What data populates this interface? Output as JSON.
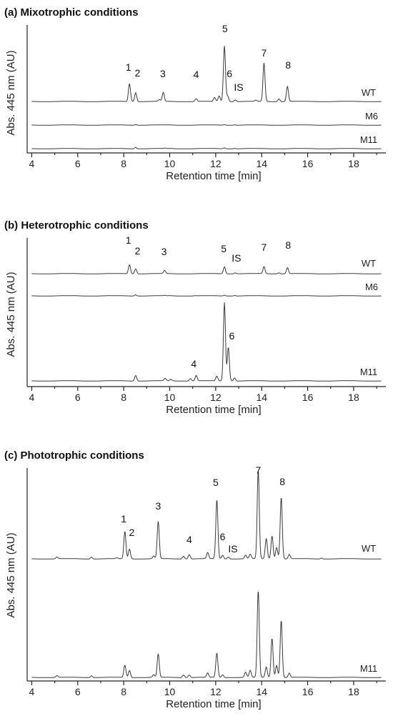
{
  "figure": {
    "y_axis_label": "Abs. 445 nm  (AU)",
    "x_axis_label": "Retention time [min]"
  },
  "chart_data": [
    {
      "type": "line",
      "panel": "a",
      "title": "(a) Mixotrophic conditions",
      "xlabel": "Retention time [min]",
      "ylabel": "Abs. 445 nm  (AU)",
      "xlim": [
        3.8,
        19.4
      ],
      "xticks": [
        4,
        6,
        8,
        10,
        12,
        14,
        16,
        18
      ],
      "ylim": [
        0,
        1
      ],
      "series": [
        {
          "name": "WT",
          "peaks": [
            {
              "rt": 8.25,
              "height": 0.32
            },
            {
              "rt": 8.52,
              "height": 0.16
            },
            {
              "rt": 9.72,
              "height": 0.16
            },
            {
              "rt": 9.55,
              "height": 0.03
            },
            {
              "rt": 11.15,
              "height": 0.05
            },
            {
              "rt": 11.95,
              "height": 0.07
            },
            {
              "rt": 12.15,
              "height": 0.1
            },
            {
              "rt": 12.38,
              "height": 1.0
            },
            {
              "rt": 12.52,
              "height": 0.1
            },
            {
              "rt": 12.85,
              "height": 0.03
            },
            {
              "rt": 14.1,
              "height": 0.69
            },
            {
              "rt": 13.75,
              "height": 0.02
            },
            {
              "rt": 14.75,
              "height": 0.05
            },
            {
              "rt": 15.12,
              "height": 0.27
            }
          ]
        },
        {
          "name": "M6",
          "peaks": [
            {
              "rt": 8.52,
              "height": 0.08
            },
            {
              "rt": 10.0,
              "height": 0.02
            },
            {
              "rt": 12.38,
              "height": 0.06
            },
            {
              "rt": 12.82,
              "height": 0.04
            }
          ]
        },
        {
          "name": "M11",
          "peaks": [
            {
              "rt": 8.52,
              "height": 0.17
            },
            {
              "rt": 9.8,
              "height": 0.04
            },
            {
              "rt": 10.1,
              "height": 0.02
            },
            {
              "rt": 12.38,
              "height": 0.1
            },
            {
              "rt": 12.82,
              "height": 0.05
            }
          ]
        }
      ],
      "peak_labels": [
        {
          "text": "1",
          "rt": 8.2
        },
        {
          "text": "2",
          "rt": 8.6
        },
        {
          "text": "3",
          "rt": 9.7
        },
        {
          "text": "4",
          "rt": 11.15
        },
        {
          "text": "5",
          "rt": 12.4
        },
        {
          "text": "6",
          "rt": 12.6
        },
        {
          "text": "IS",
          "rt": 13.0
        },
        {
          "text": "7",
          "rt": 14.1
        },
        {
          "text": "8",
          "rt": 15.15
        }
      ]
    },
    {
      "type": "line",
      "panel": "b",
      "title": "(b) Heterotrophic conditions",
      "xlabel": "Retention time [min]",
      "ylabel": "Abs. 445 nm  (AU)",
      "xlim": [
        3.8,
        19.4
      ],
      "xticks": [
        4,
        6,
        8,
        10,
        12,
        14,
        16,
        18
      ],
      "ylim": [
        0,
        1
      ],
      "series": [
        {
          "name": "WT",
          "peaks": [
            {
              "rt": 8.25,
              "height": 0.18
            },
            {
              "rt": 8.52,
              "height": 0.1
            },
            {
              "rt": 9.78,
              "height": 0.06
            },
            {
              "rt": 12.38,
              "height": 0.14
            },
            {
              "rt": 12.85,
              "height": 0.02
            },
            {
              "rt": 14.1,
              "height": 0.14
            },
            {
              "rt": 14.75,
              "height": 0.02
            },
            {
              "rt": 15.12,
              "height": 0.12
            }
          ]
        },
        {
          "name": "M6",
          "peaks": [
            {
              "rt": 8.52,
              "height": 0.14
            },
            {
              "rt": 9.78,
              "height": 0.04
            },
            {
              "rt": 10.0,
              "height": 0.02
            },
            {
              "rt": 11.1,
              "height": 0.02
            },
            {
              "rt": 12.38,
              "height": 0.08
            },
            {
              "rt": 12.82,
              "height": 0.06
            }
          ]
        },
        {
          "name": "M11",
          "peaks": [
            {
              "rt": 8.52,
              "height": 0.07
            },
            {
              "rt": 9.8,
              "height": 0.03
            },
            {
              "rt": 10.05,
              "height": 0.02
            },
            {
              "rt": 10.9,
              "height": 0.03
            },
            {
              "rt": 11.15,
              "height": 0.07
            },
            {
              "rt": 12.05,
              "height": 0.06
            },
            {
              "rt": 12.38,
              "height": 1.0
            },
            {
              "rt": 12.55,
              "height": 0.43
            },
            {
              "rt": 12.82,
              "height": 0.04
            }
          ]
        }
      ],
      "peak_labels": [
        {
          "text": "1",
          "rt": 8.2
        },
        {
          "text": "2",
          "rt": 8.6
        },
        {
          "text": "3",
          "rt": 9.75
        },
        {
          "text": "5",
          "rt": 12.35
        },
        {
          "text": "IS",
          "rt": 12.9
        },
        {
          "text": "7",
          "rt": 14.1
        },
        {
          "text": "8",
          "rt": 15.15
        },
        {
          "text": "4",
          "rt": 11.05
        },
        {
          "text": "6",
          "rt": 12.7
        }
      ]
    },
    {
      "type": "line",
      "panel": "c",
      "title": "(c) Phototrophic conditions",
      "xlabel": "Retention time [min]",
      "ylabel": "Abs. 445 nm  (AU)",
      "xlim": [
        3.8,
        19.4
      ],
      "xticks": [
        4,
        6,
        8,
        10,
        12,
        14,
        16,
        18
      ],
      "ylim": [
        0,
        1
      ],
      "series": [
        {
          "name": "WT",
          "peaks": [
            {
              "rt": 5.1,
              "height": 0.02
            },
            {
              "rt": 6.6,
              "height": 0.02
            },
            {
              "rt": 7.7,
              "height": 0.01
            },
            {
              "rt": 8.05,
              "height": 0.31
            },
            {
              "rt": 8.25,
              "height": 0.11
            },
            {
              "rt": 9.3,
              "height": 0.03
            },
            {
              "rt": 9.5,
              "height": 0.42
            },
            {
              "rt": 10.6,
              "height": 0.03
            },
            {
              "rt": 10.85,
              "height": 0.05
            },
            {
              "rt": 11.65,
              "height": 0.07
            },
            {
              "rt": 12.05,
              "height": 0.67
            },
            {
              "rt": 12.3,
              "height": 0.04
            },
            {
              "rt": 12.55,
              "height": 0.02
            },
            {
              "rt": 13.3,
              "height": 0.04
            },
            {
              "rt": 13.5,
              "height": 0.05
            },
            {
              "rt": 13.85,
              "height": 1.0
            },
            {
              "rt": 14.2,
              "height": 0.23
            },
            {
              "rt": 14.45,
              "height": 0.26
            },
            {
              "rt": 14.65,
              "height": 0.13
            },
            {
              "rt": 14.85,
              "height": 0.7
            },
            {
              "rt": 15.2,
              "height": 0.05
            },
            {
              "rt": 16.6,
              "height": 0.01
            }
          ]
        },
        {
          "name": "M11",
          "peaks": [
            {
              "rt": 5.1,
              "height": 0.02
            },
            {
              "rt": 6.6,
              "height": 0.02
            },
            {
              "rt": 8.05,
              "height": 0.14
            },
            {
              "rt": 8.25,
              "height": 0.08
            },
            {
              "rt": 9.3,
              "height": 0.03
            },
            {
              "rt": 9.5,
              "height": 0.27
            },
            {
              "rt": 10.6,
              "height": 0.03
            },
            {
              "rt": 10.85,
              "height": 0.03
            },
            {
              "rt": 11.65,
              "height": 0.05
            },
            {
              "rt": 12.05,
              "height": 0.28
            },
            {
              "rt": 12.3,
              "height": 0.03
            },
            {
              "rt": 13.3,
              "height": 0.06
            },
            {
              "rt": 13.5,
              "height": 0.08
            },
            {
              "rt": 13.85,
              "height": 1.0
            },
            {
              "rt": 14.2,
              "height": 0.12
            },
            {
              "rt": 14.45,
              "height": 0.45
            },
            {
              "rt": 14.65,
              "height": 0.14
            },
            {
              "rt": 14.85,
              "height": 0.66
            },
            {
              "rt": 15.2,
              "height": 0.05
            }
          ]
        }
      ],
      "peak_labels": [
        {
          "text": "1",
          "rt": 8.0
        },
        {
          "text": "2",
          "rt": 8.35
        },
        {
          "text": "3",
          "rt": 9.5
        },
        {
          "text": "4",
          "rt": 10.85
        },
        {
          "text": "5",
          "rt": 12.0
        },
        {
          "text": "6",
          "rt": 12.3
        },
        {
          "text": "IS",
          "rt": 12.75
        },
        {
          "text": "7",
          "rt": 13.85
        },
        {
          "text": "8",
          "rt": 14.9
        }
      ]
    }
  ]
}
